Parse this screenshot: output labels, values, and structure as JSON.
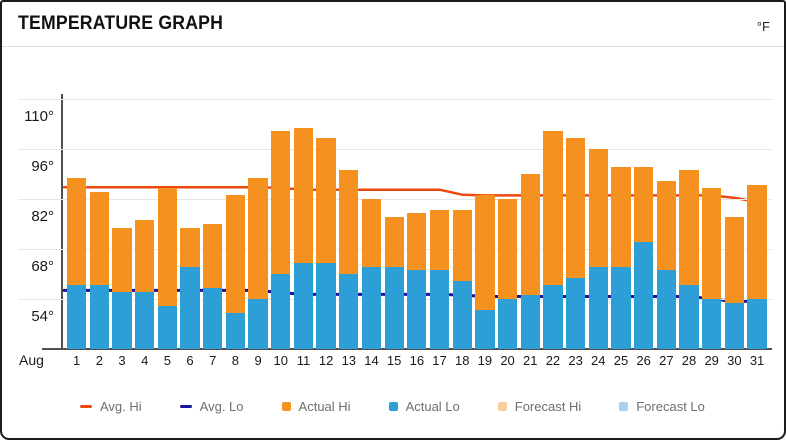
{
  "header": {
    "title": "TEMPERATURE GRAPH",
    "unit": "°F"
  },
  "chart_data": {
    "type": "bar",
    "title": "TEMPERATURE GRAPH",
    "unit": "°F",
    "month_label": "Aug",
    "x": [
      1,
      2,
      3,
      4,
      5,
      6,
      7,
      8,
      9,
      10,
      11,
      12,
      13,
      14,
      15,
      16,
      17,
      18,
      19,
      20,
      21,
      22,
      23,
      24,
      25,
      26,
      27,
      28,
      29,
      30,
      31
    ],
    "y_axis": {
      "ticks": [
        54,
        68,
        82,
        96,
        110
      ],
      "tick_suffix": "°",
      "range": [
        40,
        112
      ],
      "grid": true
    },
    "legend_position": "bottom",
    "series": [
      {
        "name": "Avg. Hi",
        "kind": "line",
        "color": "#eb4a0f",
        "values": [
          85.3,
          85.3,
          85.3,
          85.3,
          85.3,
          85.3,
          85.3,
          85.3,
          85.3,
          85.1,
          84.6,
          84.6,
          84.6,
          84.6,
          84.6,
          84.6,
          84.6,
          83.2,
          83,
          83,
          83,
          83,
          83,
          83,
          83,
          83,
          83,
          83,
          83,
          82.3,
          81.2
        ]
      },
      {
        "name": "Avg. Lo",
        "kind": "line",
        "color": "#15179e",
        "values": [
          56.4,
          56.4,
          56.4,
          56.4,
          56.4,
          56.4,
          56.4,
          56.4,
          56.4,
          55.8,
          55.3,
          55.3,
          55.3,
          55.3,
          55.3,
          55.3,
          55.3,
          55.1,
          54.7,
          54.7,
          54.7,
          54.7,
          54.7,
          54.7,
          54.7,
          54.7,
          54.7,
          54.7,
          54,
          53.3,
          53.4
        ]
      },
      {
        "name": "Actual Hi",
        "kind": "bar",
        "color": "#f5921f",
        "values": [
          88,
          84,
          74,
          76,
          85,
          74,
          75,
          83,
          88,
          101,
          102,
          99,
          90,
          82,
          77,
          78,
          79,
          79,
          83,
          82,
          89,
          101,
          99,
          96,
          91,
          91,
          87,
          90,
          85,
          77,
          86
        ]
      },
      {
        "name": "Actual Lo",
        "kind": "bar",
        "color": "#2e9fd6",
        "values": [
          58,
          58,
          56,
          56,
          52,
          63,
          57,
          50,
          54,
          61,
          64,
          64,
          61,
          63,
          63,
          62,
          62,
          59,
          51,
          54,
          55,
          58,
          60,
          63,
          63,
          70,
          62,
          58,
          54,
          53,
          54
        ]
      },
      {
        "name": "Forecast Hi",
        "kind": "bar",
        "color": "#f8cea1",
        "values": []
      },
      {
        "name": "Forecast Lo",
        "kind": "bar",
        "color": "#a6d2ec",
        "values": []
      }
    ]
  }
}
